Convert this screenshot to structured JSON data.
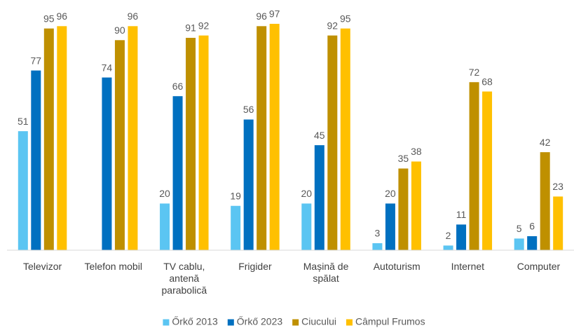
{
  "chart_data": {
    "type": "bar",
    "categories": [
      "Televizor",
      "Telefon mobil",
      "TV cablu, antenă parabolică",
      "Frigider",
      "Mașină de spălat",
      "Autoturism",
      "Internet",
      "Computer"
    ],
    "series": [
      {
        "name": "Őrkő 2013",
        "color": "#5bc5f2",
        "values": [
          51,
          null,
          20,
          19,
          20,
          3,
          2,
          5
        ]
      },
      {
        "name": "Őrkő 2023",
        "color": "#0070c0",
        "values": [
          77,
          74,
          66,
          56,
          45,
          20,
          11,
          6
        ]
      },
      {
        "name": "Ciucului",
        "color": "#bf9000",
        "values": [
          95,
          90,
          91,
          96,
          92,
          35,
          72,
          42
        ]
      },
      {
        "name": "Câmpul Frumos",
        "color": "#ffc000",
        "values": [
          96,
          96,
          92,
          97,
          95,
          38,
          68,
          23
        ]
      }
    ],
    "ylim": [
      0,
      100
    ],
    "legend": "bottom"
  }
}
